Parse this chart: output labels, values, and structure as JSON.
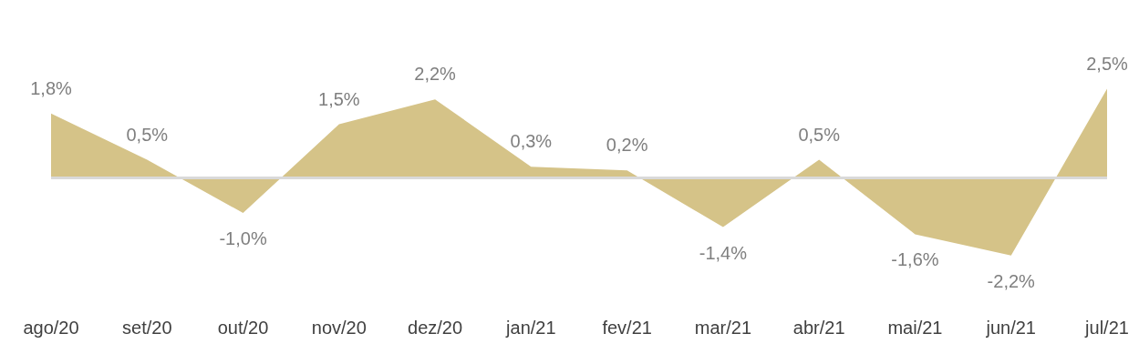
{
  "chart_data": {
    "type": "area",
    "categories": [
      "ago/20",
      "set/20",
      "out/20",
      "nov/20",
      "dez/20",
      "jan/21",
      "fev/21",
      "mar/21",
      "abr/21",
      "mai/21",
      "jun/21",
      "jul/21"
    ],
    "values": [
      1.8,
      0.5,
      -1.0,
      1.5,
      2.2,
      0.3,
      0.2,
      -1.4,
      0.5,
      -1.6,
      -2.2,
      2.5
    ],
    "value_labels": [
      "1,8%",
      "0,5%",
      "-1,0%",
      "1,5%",
      "2,2%",
      "0,3%",
      "0,2%",
      "-1,4%",
      "0,5%",
      "-1,6%",
      "-2,2%",
      "2,5%"
    ],
    "color": "#d5c388",
    "tick_labels": "x",
    "grid": false,
    "marker": "none",
    "ref_lines": [
      {
        "axis": "y",
        "value": 0,
        "color": "#d9d9d9"
      }
    ]
  }
}
